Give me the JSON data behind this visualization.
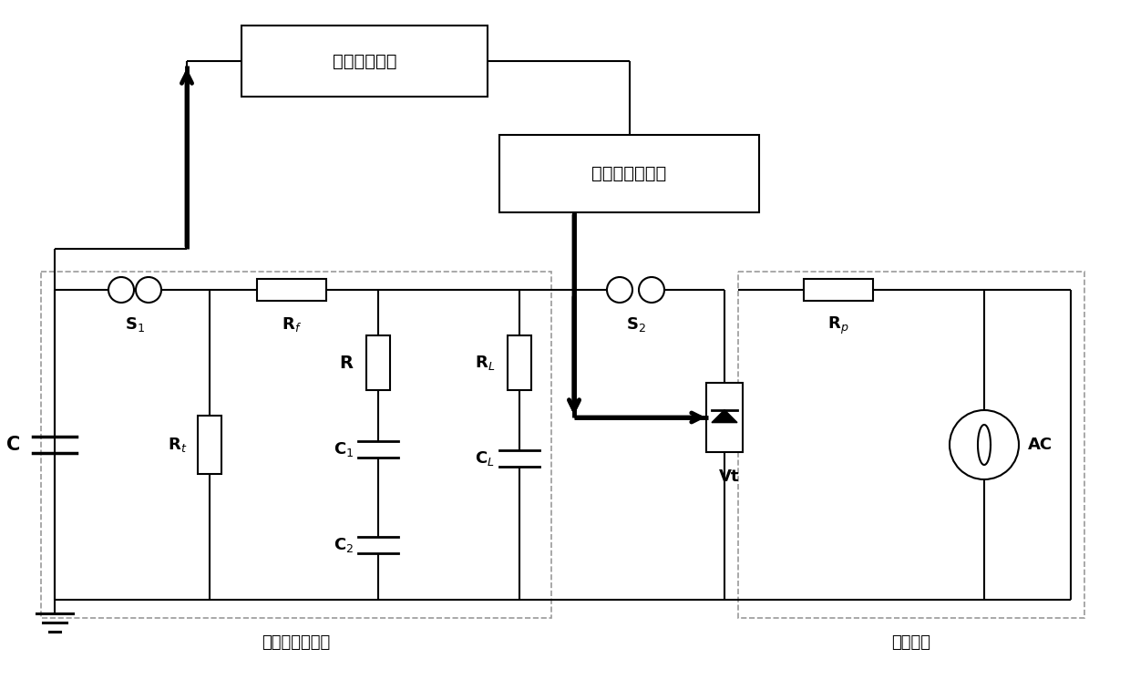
{
  "bg_color": "#ffffff",
  "lc": "#000000",
  "dlc": "#999999",
  "title_box1": "信号处理装置",
  "title_box2": "换流阀控制系统",
  "label_impulse": "冲击电压发生器",
  "label_aux": "辅助电源",
  "figw": 12.4,
  "figh": 7.68,
  "dpi": 100
}
